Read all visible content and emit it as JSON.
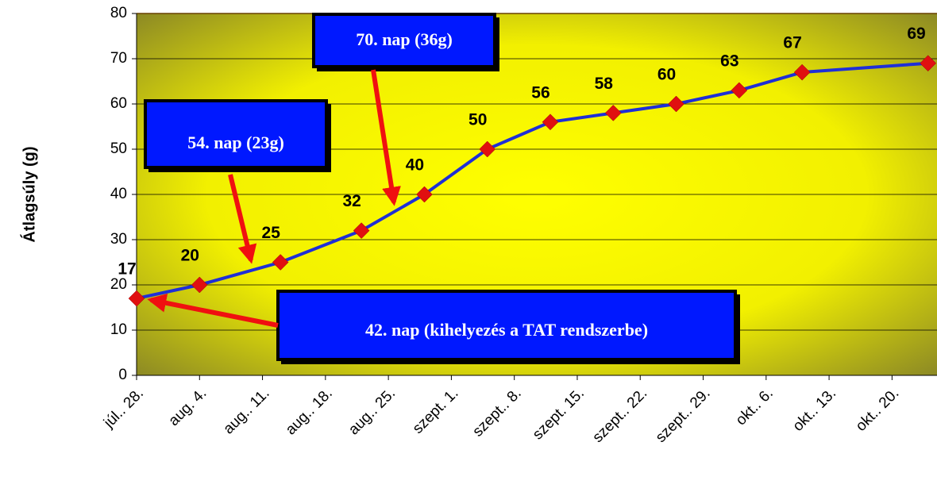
{
  "chart_data": {
    "type": "line",
    "y_label": "Átlagsúly (g)",
    "x": [
      "07-28",
      "08-04",
      "08-13",
      "08-22",
      "08-29",
      "09-05",
      "09-12",
      "09-19",
      "09-26",
      "10-03",
      "10-10",
      "10-24"
    ],
    "series": [
      {
        "name": "Átlagsúly",
        "color": "#1f2fd6",
        "marker_color": "#e01010",
        "values": [
          17,
          20,
          25,
          32,
          40,
          50,
          56,
          58,
          60,
          63,
          67,
          69
        ]
      }
    ],
    "xlim": [
      "07-28",
      "10-25"
    ],
    "xticks": [
      {
        "value": "07-28",
        "label": "júl.. 28."
      },
      {
        "value": "08-04",
        "label": "aug. 4."
      },
      {
        "value": "08-11",
        "label": "aug.. 11."
      },
      {
        "value": "08-18",
        "label": "aug.. 18."
      },
      {
        "value": "08-25",
        "label": "aug.. 25."
      },
      {
        "value": "09-01",
        "label": "szept. 1."
      },
      {
        "value": "09-08",
        "label": "szept.. 8."
      },
      {
        "value": "09-15",
        "label": "szept. 15."
      },
      {
        "value": "09-22",
        "label": "szept.. 22."
      },
      {
        "value": "09-29",
        "label": "szept.. 29."
      },
      {
        "value": "10-06",
        "label": "okt.. 6."
      },
      {
        "value": "10-13",
        "label": "okt.. 13."
      },
      {
        "value": "10-20",
        "label": "okt.. 20."
      }
    ],
    "ylim": [
      0,
      80
    ],
    "yticks": [
      0,
      10,
      20,
      30,
      40,
      50,
      60,
      70,
      80
    ],
    "grid": true,
    "annotations": [
      "70. nap (36g)",
      "54. nap (23g)",
      "42. nap (kihelyezés a TAT rendszerbe)"
    ]
  }
}
